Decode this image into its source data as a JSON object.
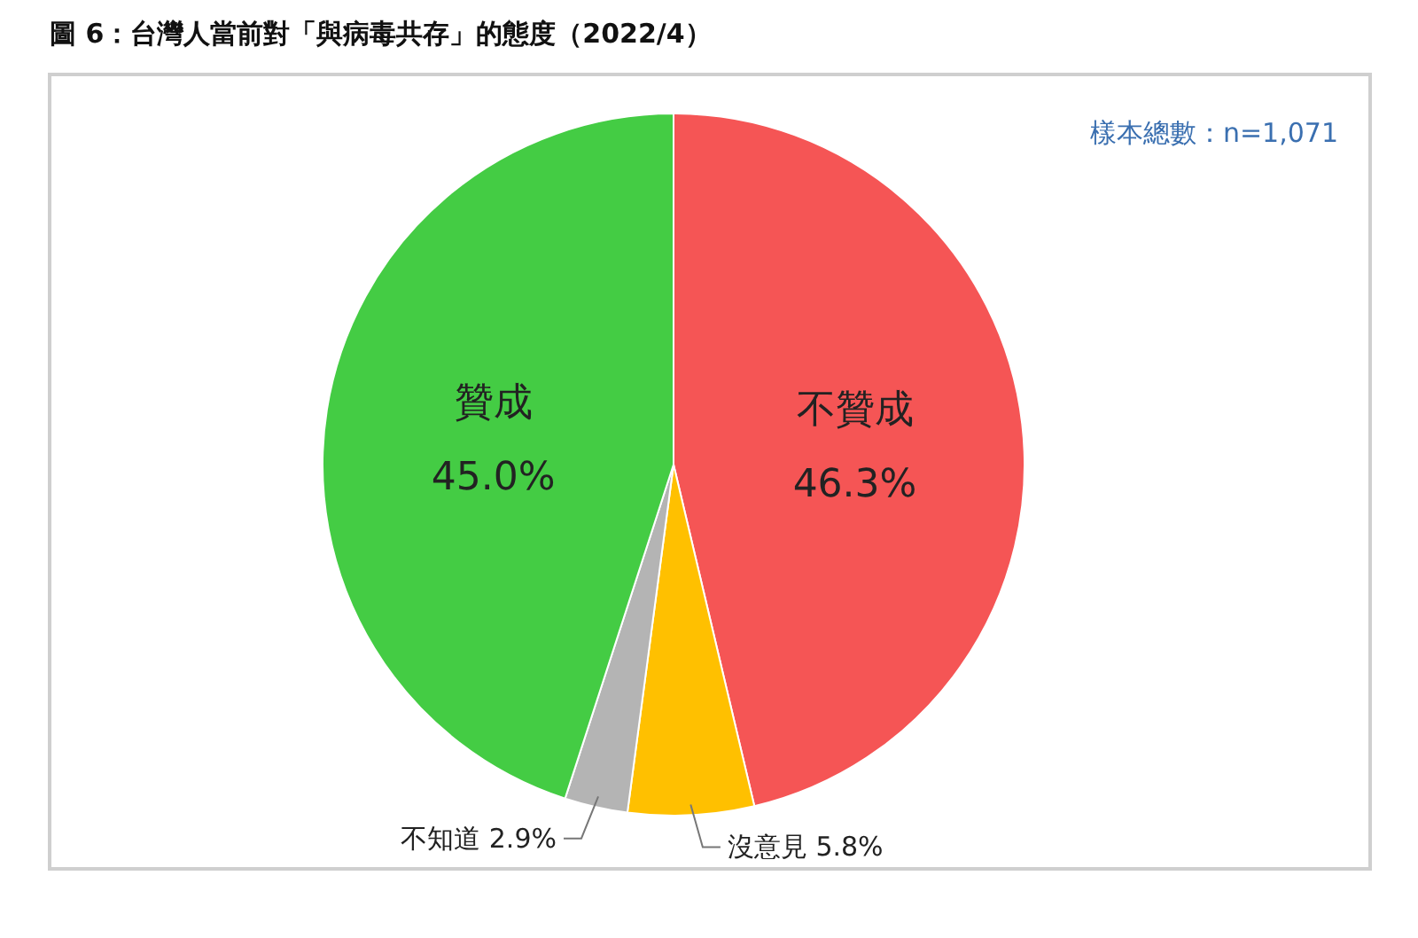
{
  "chart_data": {
    "type": "pie",
    "title": "圖 6：台灣人當前對「與病毒共存」的態度（2022/4）",
    "annotations": [
      "樣本總數：n=1,071"
    ],
    "categories": [
      "不贊成",
      "沒意見",
      "不知道",
      "贊成"
    ],
    "values": [
      46.3,
      5.8,
      2.9,
      45.0
    ],
    "value_labels": [
      "46.3%",
      "5.8%",
      "2.9%",
      "45.0%"
    ],
    "colors": [
      "#f55555",
      "#ffc000",
      "#b4b4b4",
      "#44cc44"
    ]
  }
}
